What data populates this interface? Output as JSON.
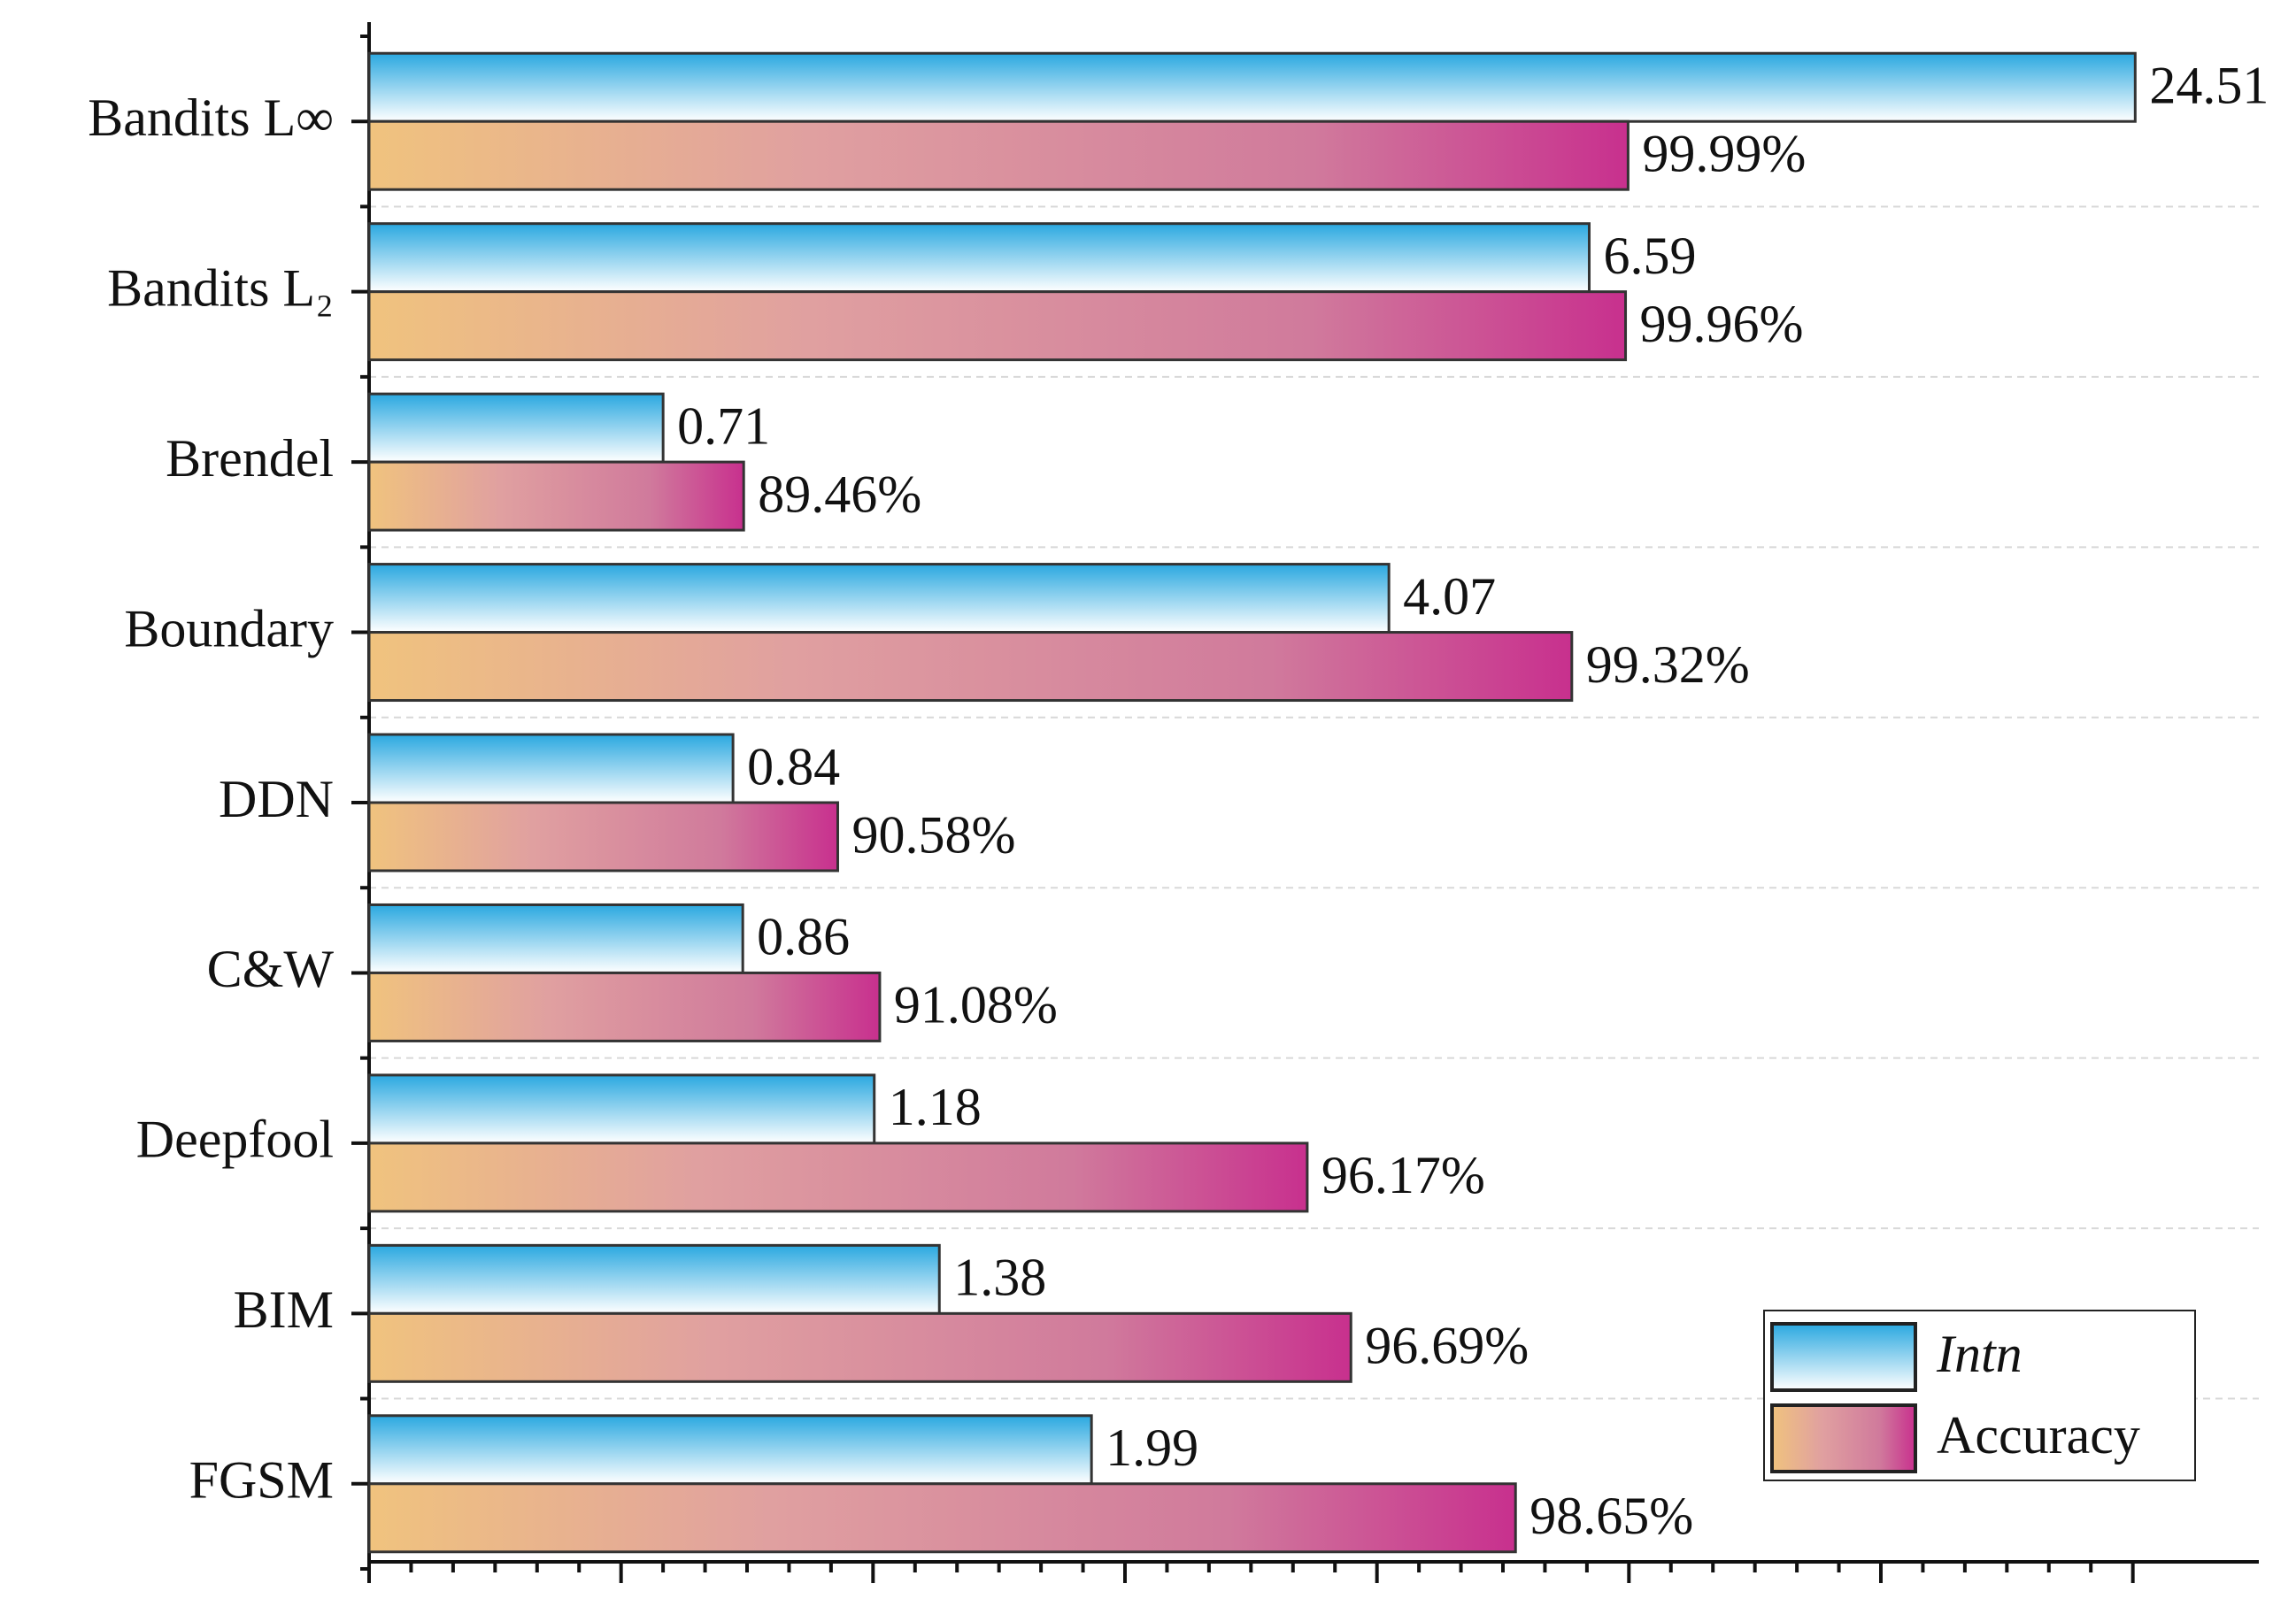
{
  "chart_data": {
    "type": "bar",
    "orientation": "horizontal",
    "categories": [
      "Bandits L∞",
      "Bandits L₂",
      "Brendel",
      "Boundary",
      "DDN",
      "C&W",
      "Deepfool",
      "BIM",
      "FGSM"
    ],
    "series": [
      {
        "name": "Intn",
        "color": "#2aa8e0",
        "axis": "x2",
        "values": [
          24.51,
          6.59,
          0.71,
          4.07,
          0.84,
          0.86,
          1.18,
          1.38,
          1.99
        ]
      },
      {
        "name": "Accuracy",
        "color": "#c8308e",
        "values": [
          99.99,
          99.96,
          89.46,
          99.32,
          90.58,
          91.08,
          96.17,
          96.69,
          98.65
        ],
        "value_labels": [
          "99.99%",
          "99.96%",
          "89.46%",
          "99.32%",
          "90.58%",
          "91.08%",
          "96.17%",
          "96.69%",
          "98.65%"
        ]
      }
    ],
    "xlim": [
      85,
      107.5
    ],
    "xticks": [
      85,
      88,
      91,
      94,
      97,
      100,
      103,
      106
    ],
    "x2lim": [
      0.35,
      33
    ],
    "x2scale": "log",
    "grid": true,
    "legend": "lower right"
  }
}
